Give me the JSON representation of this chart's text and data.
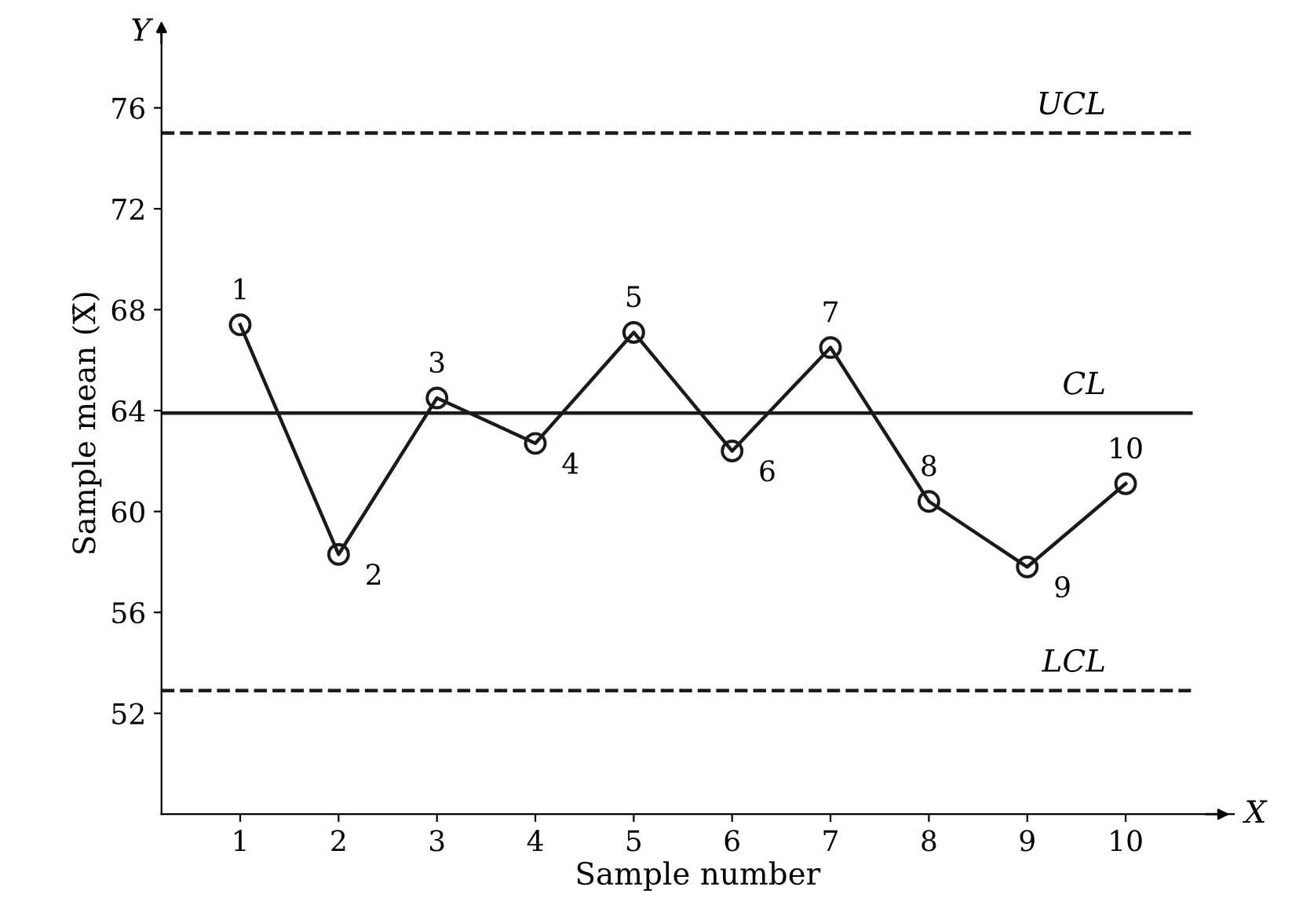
{
  "chart_data": {
    "type": "line",
    "xlabel": "Sample number",
    "ylabel": "Sample mean (X̄)",
    "x": [
      1,
      2,
      3,
      4,
      5,
      6,
      7,
      8,
      9,
      10
    ],
    "series": [
      {
        "color": "#1a1a1a",
        "values": [
          67.4,
          58.3,
          64.5,
          62.7,
          67.1,
          62.4,
          66.5,
          60.4,
          57.8,
          61.1
        ]
      }
    ],
    "marker": "circle",
    "line_style": "solid",
    "grid": false,
    "legend": false,
    "xlim": [
      0.2,
      11.1
    ],
    "ylim": [
      48,
      79
    ],
    "xticks": [
      1,
      2,
      3,
      4,
      5,
      6,
      7,
      8,
      9,
      10
    ],
    "yticks": [
      52,
      56,
      60,
      64,
      68,
      72,
      76
    ],
    "ref_lines": [
      {
        "axis": "y",
        "value": 75,
        "label": "UCL",
        "line_style": "dashed",
        "color": "#1a1a1a"
      },
      {
        "axis": "y",
        "value": 63.9,
        "label": "CL",
        "line_style": "solid",
        "color": "#1a1a1a"
      },
      {
        "axis": "y",
        "value": 52.9,
        "label": "LCL",
        "line_style": "dashed",
        "color": "#1a1a1a"
      }
    ],
    "annotations": [
      "Y",
      "X",
      {
        "text": "1",
        "x": 1,
        "y": 67.4
      },
      {
        "text": "2",
        "x": 2,
        "y": 58.3
      },
      {
        "text": "3",
        "x": 3,
        "y": 64.5
      },
      {
        "text": "4",
        "x": 4,
        "y": 62.7
      },
      {
        "text": "5",
        "x": 5,
        "y": 67.1
      },
      {
        "text": "6",
        "x": 6,
        "y": 62.4
      },
      {
        "text": "7",
        "x": 7,
        "y": 66.5
      },
      {
        "text": "8",
        "x": 8,
        "y": 60.4
      },
      {
        "text": "9",
        "x": 9,
        "y": 57.8
      },
      {
        "text": "10",
        "x": 10,
        "y": 61.1
      }
    ]
  }
}
